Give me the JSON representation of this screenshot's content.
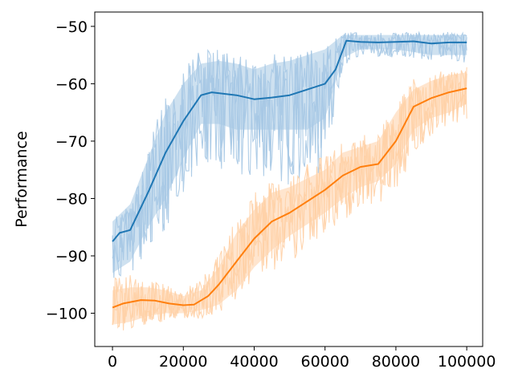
{
  "chart_data": {
    "type": "line",
    "title": "",
    "xlabel": "",
    "ylabel": "Performance",
    "xlim": [
      -5000,
      104500
    ],
    "ylim": [
      -105.8,
      -47.5
    ],
    "xticks": [
      0,
      20000,
      40000,
      60000,
      80000,
      100000
    ],
    "xtick_labels": [
      "0",
      "20000",
      "40000",
      "60000",
      "80000",
      "100000"
    ],
    "yticks": [
      -100,
      -90,
      -80,
      -70,
      -60,
      -50
    ],
    "ytick_labels": [
      "−100",
      "−90",
      "−80",
      "−70",
      "−60",
      "−50"
    ],
    "grid": false,
    "legend": "none",
    "series": [
      {
        "color": "#1f77b4",
        "band_color": "#a6c8e4",
        "mean": {
          "x": [
            0,
            2000,
            5000,
            10000,
            15000,
            20000,
            25000,
            28000,
            35000,
            40000,
            45000,
            50000,
            55000,
            60000,
            63000,
            66000,
            70000,
            75000,
            80000,
            85000,
            90000,
            95000,
            100000
          ],
          "y": [
            -87.5,
            -86,
            -85.5,
            -79,
            -72,
            -66.5,
            -62,
            -61.5,
            -62,
            -62.7,
            -62.4,
            -62,
            -61,
            -60,
            -57.5,
            -52.5,
            -52.7,
            -52.8,
            -52.7,
            -52.6,
            -53,
            -52.8,
            -52.8
          ]
        },
        "band": {
          "x": [
            0,
            5000,
            10000,
            15000,
            20000,
            25000,
            30000,
            35000,
            40000,
            45000,
            50000,
            55000,
            60000,
            65000,
            70000,
            80000,
            90000,
            100000
          ],
          "lower": [
            -93,
            -91,
            -85,
            -80,
            -73,
            -67,
            -67,
            -68,
            -68,
            -68,
            -68,
            -68,
            -66,
            -55.5,
            -54,
            -54,
            -55,
            -55
          ],
          "upper": [
            -84,
            -81,
            -73,
            -65,
            -60,
            -56.5,
            -56,
            -56.5,
            -57.5,
            -56.5,
            -56,
            -55,
            -54,
            -51.5,
            -51.5,
            -51.5,
            -51.5,
            -51.5
          ]
        },
        "extremes": {
          "x": [
            0,
            5000,
            10000,
            15000,
            20000,
            25000,
            30000,
            35000,
            40000,
            45000,
            50000,
            55000,
            60000,
            65000,
            70000,
            80000,
            90000,
            100000
          ],
          "lower": [
            -94,
            -93,
            -90,
            -86,
            -79,
            -73,
            -75,
            -76,
            -76,
            -77,
            -78,
            -79,
            -74,
            -57,
            -55,
            -55.5,
            -56,
            -56.5
          ],
          "upper": [
            -84,
            -80,
            -71,
            -62,
            -57,
            -54,
            -54,
            -55,
            -56,
            -55,
            -54,
            -54,
            -53,
            -51,
            -51,
            -51,
            -51,
            -50.8
          ]
        }
      },
      {
        "color": "#ff7f0e",
        "band_color": "#ffd0a6",
        "mean": {
          "x": [
            0,
            3000,
            8000,
            12000,
            16000,
            20000,
            23000,
            27000,
            30000,
            35000,
            40000,
            45000,
            50000,
            55000,
            60000,
            65000,
            70000,
            75000,
            80000,
            85000,
            90000,
            95000,
            100000
          ],
          "y": [
            -99,
            -98.3,
            -97.7,
            -97.8,
            -98.3,
            -98.6,
            -98.5,
            -97,
            -95,
            -91,
            -87,
            -84,
            -82.5,
            -80.5,
            -78.5,
            -76,
            -74.5,
            -74,
            -70,
            -64,
            -62.5,
            -61.5,
            -60.8
          ]
        },
        "band": {
          "x": [
            0,
            5000,
            10000,
            15000,
            20000,
            25000,
            30000,
            35000,
            40000,
            45000,
            50000,
            55000,
            60000,
            65000,
            70000,
            75000,
            80000,
            85000,
            90000,
            95000,
            100000
          ],
          "lower": [
            -102,
            -101.5,
            -100.5,
            -100,
            -100,
            -99.5,
            -98.5,
            -96,
            -92,
            -89,
            -86.5,
            -84.5,
            -82.5,
            -80,
            -78,
            -77,
            -74,
            -68,
            -66,
            -65,
            -63.5
          ],
          "upper": [
            -96,
            -95.5,
            -95.5,
            -96,
            -97,
            -96,
            -92,
            -86,
            -82,
            -79,
            -78,
            -76.5,
            -75,
            -72,
            -71,
            -70,
            -65,
            -61,
            -59.5,
            -58.5,
            -58
          ]
        },
        "extremes": {
          "x": [
            0,
            5000,
            10000,
            15000,
            20000,
            25000,
            30000,
            35000,
            40000,
            45000,
            50000,
            55000,
            60000,
            65000,
            70000,
            75000,
            80000,
            85000,
            90000,
            95000,
            100000
          ],
          "lower": [
            -103,
            -103,
            -102,
            -101.5,
            -101,
            -101,
            -100,
            -98,
            -95,
            -93,
            -91,
            -89,
            -87,
            -84,
            -82,
            -81,
            -79,
            -73,
            -69,
            -68,
            -66.5
          ],
          "upper": [
            -94,
            -93,
            -94,
            -95,
            -96,
            -94,
            -89,
            -83,
            -79,
            -77,
            -76.5,
            -74,
            -72,
            -70,
            -69,
            -68,
            -63,
            -59,
            -58,
            -57.5,
            -57
          ]
        }
      }
    ]
  }
}
